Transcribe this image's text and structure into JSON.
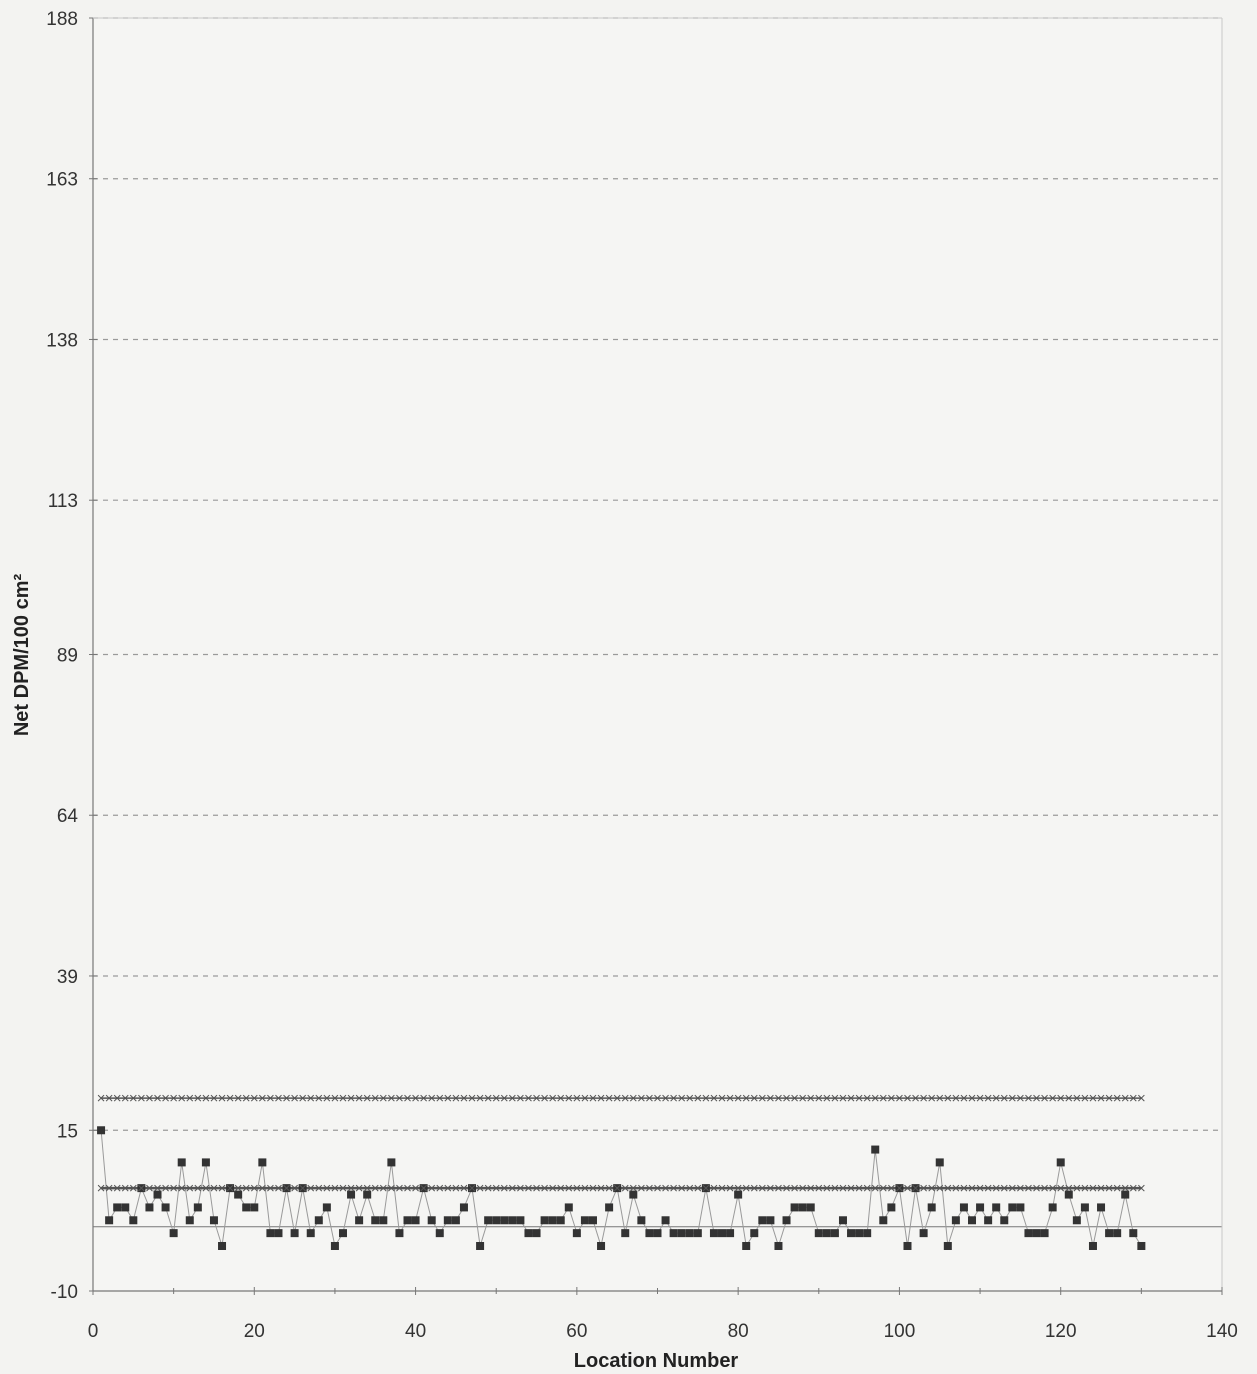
{
  "chart_data": {
    "type": "line",
    "title": "",
    "xlabel": "Location Number",
    "ylabel": "Net  DPM/100 cm²",
    "xlim": [
      0,
      140
    ],
    "ylim": [
      -10,
      188
    ],
    "x_ticks": [
      0,
      20,
      40,
      60,
      80,
      100,
      120,
      140
    ],
    "y_ticks": [
      -10,
      15,
      39,
      64,
      89,
      113,
      138,
      163,
      188
    ],
    "x_tick_labels": [
      "0",
      "20",
      "40",
      "60",
      "80",
      "100",
      "120",
      "140"
    ],
    "y_tick_labels": [
      "-10",
      "15",
      "39",
      "64",
      "89",
      "113",
      "138",
      "163",
      "188"
    ],
    "grid": "horizontal dashed",
    "colors": {
      "background": "#f3f3f1",
      "grid": "#9a9a9a",
      "series": "#333333",
      "threshold": "#555555",
      "axis": "#777777"
    },
    "series": [
      {
        "marker": "square",
        "x": [
          1,
          2,
          3,
          4,
          5,
          6,
          7,
          8,
          9,
          10,
          11,
          12,
          13,
          14,
          15,
          16,
          17,
          18,
          19,
          20,
          21,
          22,
          23,
          24,
          25,
          26,
          27,
          28,
          29,
          30,
          31,
          32,
          33,
          34,
          35,
          36,
          37,
          38,
          39,
          40,
          41,
          42,
          43,
          44,
          45,
          46,
          47,
          48,
          49,
          50,
          51,
          52,
          53,
          54,
          55,
          56,
          57,
          58,
          59,
          60,
          61,
          62,
          63,
          64,
          65,
          66,
          67,
          68,
          69,
          70,
          71,
          72,
          73,
          74,
          75,
          76,
          77,
          78,
          79,
          80,
          81,
          82,
          83,
          84,
          85,
          86,
          87,
          88,
          89,
          90,
          91,
          92,
          93,
          94,
          95,
          96,
          97,
          98,
          99,
          100,
          101,
          102,
          103,
          104,
          105,
          106,
          107,
          108,
          109,
          110,
          111,
          112,
          113,
          114,
          115,
          116,
          117,
          118,
          119,
          120,
          121,
          122,
          123,
          124,
          125,
          126,
          127,
          128,
          129,
          130
        ],
        "values": [
          15,
          1,
          3,
          3,
          1,
          6,
          3,
          5,
          3,
          -1,
          10,
          1,
          3,
          10,
          1,
          -3,
          6,
          5,
          3,
          3,
          10,
          -1,
          -1,
          6,
          -1,
          6,
          -1,
          1,
          3,
          -3,
          -1,
          5,
          1,
          5,
          1,
          1,
          10,
          -1,
          1,
          1,
          6,
          1,
          -1,
          1,
          1,
          3,
          6,
          -3,
          1,
          1,
          1,
          1,
          1,
          -1,
          -1,
          1,
          1,
          1,
          3,
          -1,
          1,
          1,
          -3,
          3,
          6,
          -1,
          5,
          1,
          -1,
          -1,
          1,
          -1,
          -1,
          -1,
          -1,
          6,
          -1,
          -1,
          -1,
          5,
          -3,
          -1,
          1,
          1,
          -3,
          1,
          3,
          3,
          3,
          -1,
          -1,
          -1,
          1,
          -1,
          -1,
          -1,
          12,
          1,
          3,
          6,
          -3,
          6,
          -1,
          3,
          10,
          -3,
          1,
          3,
          1,
          3,
          1,
          3,
          1,
          3,
          3,
          -1,
          -1,
          -1,
          3,
          10,
          5,
          1,
          3,
          -3,
          3,
          -1,
          -1,
          5,
          -1,
          -3
        ]
      },
      {
        "marker": "cross",
        "x": [
          1,
          130
        ],
        "values": [
          20,
          20
        ]
      },
      {
        "marker": "star",
        "x": [
          1,
          130
        ],
        "values": [
          6,
          6
        ]
      }
    ]
  }
}
